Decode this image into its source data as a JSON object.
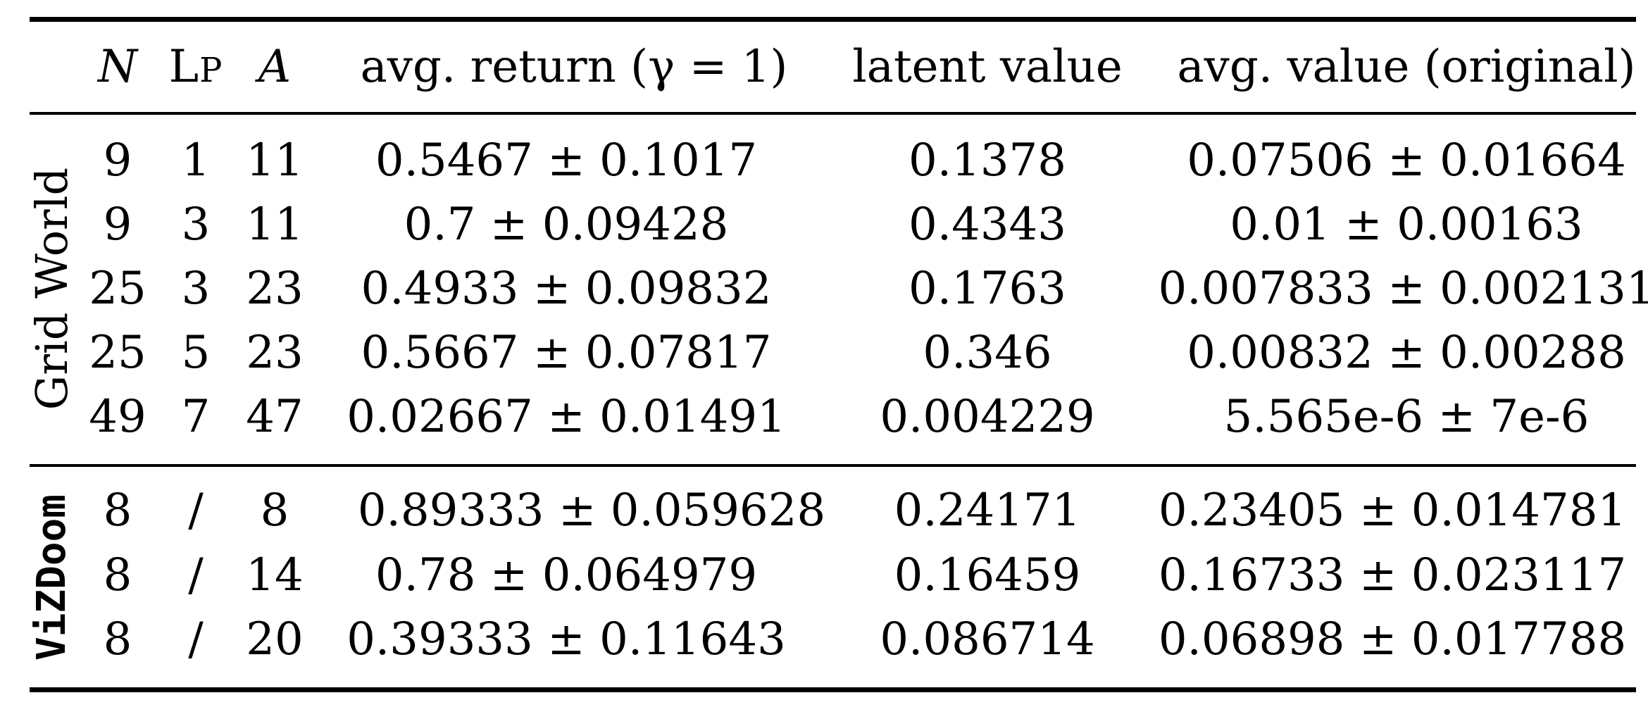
{
  "table": {
    "headers": {
      "n": "N",
      "lp_big": "L",
      "lp_small": "P",
      "a": "A",
      "avg_return": "avg. return (γ = 1)",
      "latent_value": "latent value",
      "avg_value": "avg. value (original)"
    },
    "groups": [
      {
        "name": "Grid World",
        "rows": [
          {
            "n": "9",
            "lp": "1",
            "a": "11",
            "avg_return": "0.5467 ± 0.1017",
            "latent": "0.1378",
            "avg_value": "0.07506 ± 0.01664"
          },
          {
            "n": "9",
            "lp": "3",
            "a": "11",
            "avg_return": "0.7 ± 0.09428",
            "latent": "0.4343",
            "avg_value": "0.01 ± 0.00163"
          },
          {
            "n": "25",
            "lp": "3",
            "a": "23",
            "avg_return": "0.4933 ± 0.09832",
            "latent": "0.1763",
            "avg_value": "0.007833 ± 0.002131"
          },
          {
            "n": "25",
            "lp": "5",
            "a": "23",
            "avg_return": "0.5667 ± 0.07817",
            "latent": "0.346",
            "avg_value": "0.00832 ± 0.00288"
          },
          {
            "n": "49",
            "lp": "7",
            "a": "47",
            "avg_return": "0.02667 ± 0.01491",
            "latent": "0.004229",
            "avg_value": "5.565e-6 ± 7e-6"
          }
        ]
      },
      {
        "name": "ViZDoom",
        "rows": [
          {
            "n": "8",
            "lp": "/",
            "a": "8",
            "avg_return": "0.89333 ± 0.059628",
            "latent": "0.24171",
            "avg_value": "0.23405 ± 0.014781"
          },
          {
            "n": "8",
            "lp": "/",
            "a": "14",
            "avg_return": "0.78 ± 0.064979",
            "latent": "0.16459",
            "avg_value": "0.16733 ± 0.023117"
          },
          {
            "n": "8",
            "lp": "/",
            "a": "20",
            "avg_return": "0.39333 ± 0.11643",
            "latent": "0.086714",
            "avg_value": "0.06898 ± 0.017788"
          }
        ]
      }
    ]
  }
}
